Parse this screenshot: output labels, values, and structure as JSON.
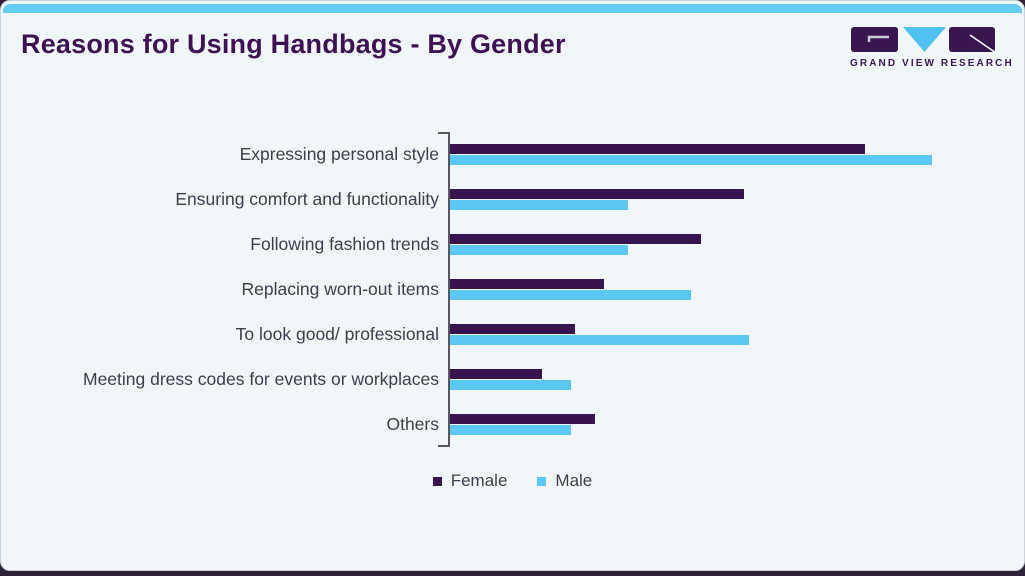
{
  "page": {
    "title": "Reasons for Using Handbags - By Gender",
    "brand": {
      "name": "GRAND VIEW RESEARCH"
    }
  },
  "colors": {
    "female": "#371450",
    "male": "#5bc8f3",
    "title_text": "#3d1152",
    "label_text": "#403c50",
    "card_background": "#f1f6fa",
    "top_strip": "#64cbf3",
    "outer_background": "#2e2238",
    "axis": "#5a5562"
  },
  "chart_data": {
    "type": "bar",
    "orientation": "horizontal",
    "title": "Reasons for Using Handbags - By Gender",
    "categories": [
      "Expressing personal style",
      "Ensuring comfort and functionality",
      "Following fashion trends",
      "Replacing worn-out items",
      "To look good/ professional",
      "Meeting dress codes for events or workplaces",
      "Others"
    ],
    "series": [
      {
        "name": "Female",
        "color": "#371450",
        "values": [
          86,
          61,
          52,
          32,
          26,
          19,
          30
        ]
      },
      {
        "name": "Male",
        "color": "#5bc8f3",
        "values": [
          100,
          37,
          37,
          50,
          62,
          25,
          25
        ]
      }
    ],
    "value_axis": {
      "tick_labels_visible": false,
      "range": [
        0,
        100
      ],
      "note": "axis is unlabeled in source image; values are relative bar-length estimates with longest bar = 100"
    },
    "grid": false,
    "legend": {
      "position": "bottom",
      "entries": [
        "Female",
        "Male"
      ]
    }
  }
}
